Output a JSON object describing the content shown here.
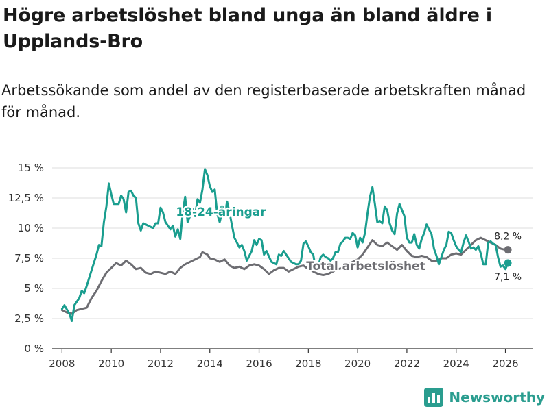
{
  "title": "Högre arbetslöshet bland unga än bland äldre i Upplands-Bro",
  "subtitle": "Arbetssökande som andel av den registerbaserade arbetskraften månad för månad.",
  "brand": {
    "name": "Newsworthy",
    "icon": "bar-chart-logo-icon"
  },
  "colors": {
    "youth": "#1a9e8f",
    "total": "#6d6d72",
    "grid": "#dddddd",
    "brand": "#2a9d8f"
  },
  "chart_data": {
    "type": "line",
    "xlabel": "",
    "ylabel": "",
    "xlim": [
      2007.6,
      2027.1
    ],
    "ylim": [
      0,
      15
    ],
    "grid": true,
    "x_ticks": [
      "2008",
      "2010",
      "2012",
      "2014",
      "2016",
      "2018",
      "2020",
      "2022",
      "2024",
      "2026"
    ],
    "y_ticks": [
      "0 %",
      "2,5 %",
      "5 %",
      "7,5 %",
      "10 %",
      "12,5 %",
      "15 %"
    ],
    "series": [
      {
        "name": "18-24-åringar",
        "label": "18-24-åringar",
        "end_label": "7,1 %",
        "points": [
          [
            2008.0,
            3.3
          ],
          [
            2008.1,
            3.6
          ],
          [
            2008.3,
            2.9
          ],
          [
            2008.4,
            2.3
          ],
          [
            2008.5,
            3.6
          ],
          [
            2008.7,
            4.2
          ],
          [
            2008.8,
            4.8
          ],
          [
            2008.9,
            4.6
          ],
          [
            2009.0,
            5.2
          ],
          [
            2009.2,
            6.5
          ],
          [
            2009.4,
            7.8
          ],
          [
            2009.5,
            8.6
          ],
          [
            2009.6,
            8.5
          ],
          [
            2009.7,
            10.5
          ],
          [
            2009.8,
            11.8
          ],
          [
            2009.9,
            13.7
          ],
          [
            2010.0,
            12.8
          ],
          [
            2010.1,
            12.0
          ],
          [
            2010.3,
            12.0
          ],
          [
            2010.4,
            12.7
          ],
          [
            2010.5,
            12.4
          ],
          [
            2010.6,
            11.3
          ],
          [
            2010.7,
            13.0
          ],
          [
            2010.8,
            13.1
          ],
          [
            2010.9,
            12.7
          ],
          [
            2011.0,
            12.5
          ],
          [
            2011.1,
            10.4
          ],
          [
            2011.2,
            9.8
          ],
          [
            2011.3,
            10.4
          ],
          [
            2011.5,
            10.2
          ],
          [
            2011.7,
            10.0
          ],
          [
            2011.8,
            10.4
          ],
          [
            2011.9,
            10.4
          ],
          [
            2012.0,
            11.7
          ],
          [
            2012.1,
            11.3
          ],
          [
            2012.2,
            10.5
          ],
          [
            2012.4,
            9.9
          ],
          [
            2012.5,
            10.2
          ],
          [
            2012.6,
            9.3
          ],
          [
            2012.7,
            9.9
          ],
          [
            2012.8,
            9.1
          ],
          [
            2012.9,
            11.3
          ],
          [
            2013.0,
            12.6
          ],
          [
            2013.1,
            10.5
          ],
          [
            2013.2,
            11.0
          ],
          [
            2013.3,
            11.6
          ],
          [
            2013.4,
            11.0
          ],
          [
            2013.5,
            12.4
          ],
          [
            2013.6,
            12.1
          ],
          [
            2013.7,
            13.2
          ],
          [
            2013.8,
            14.9
          ],
          [
            2013.9,
            14.4
          ],
          [
            2014.0,
            13.5
          ],
          [
            2014.1,
            13.0
          ],
          [
            2014.2,
            13.2
          ],
          [
            2014.3,
            11.2
          ],
          [
            2014.4,
            10.5
          ],
          [
            2014.5,
            11.3
          ],
          [
            2014.6,
            11.0
          ],
          [
            2014.7,
            12.2
          ],
          [
            2014.8,
            11.3
          ],
          [
            2014.9,
            10.2
          ],
          [
            2015.0,
            9.2
          ],
          [
            2015.2,
            8.4
          ],
          [
            2015.3,
            8.6
          ],
          [
            2015.4,
            8.1
          ],
          [
            2015.5,
            7.3
          ],
          [
            2015.7,
            8.1
          ],
          [
            2015.8,
            9.0
          ],
          [
            2015.9,
            8.6
          ],
          [
            2016.0,
            9.1
          ],
          [
            2016.1,
            9.0
          ],
          [
            2016.2,
            7.8
          ],
          [
            2016.3,
            8.1
          ],
          [
            2016.5,
            7.2
          ],
          [
            2016.7,
            7.0
          ],
          [
            2016.8,
            7.8
          ],
          [
            2016.9,
            7.7
          ],
          [
            2017.0,
            8.1
          ],
          [
            2017.1,
            7.8
          ],
          [
            2017.3,
            7.2
          ],
          [
            2017.5,
            7.0
          ],
          [
            2017.6,
            7.0
          ],
          [
            2017.7,
            7.3
          ],
          [
            2017.8,
            8.7
          ],
          [
            2017.9,
            8.9
          ],
          [
            2018.0,
            8.5
          ],
          [
            2018.1,
            8.0
          ],
          [
            2018.2,
            7.8
          ],
          [
            2018.3,
            6.6
          ],
          [
            2018.4,
            6.8
          ],
          [
            2018.5,
            7.6
          ],
          [
            2018.6,
            7.8
          ],
          [
            2018.7,
            7.6
          ],
          [
            2018.8,
            7.5
          ],
          [
            2018.9,
            7.3
          ],
          [
            2019.0,
            7.5
          ],
          [
            2019.1,
            8.0
          ],
          [
            2019.2,
            8.0
          ],
          [
            2019.3,
            8.7
          ],
          [
            2019.4,
            8.9
          ],
          [
            2019.5,
            9.2
          ],
          [
            2019.6,
            9.2
          ],
          [
            2019.7,
            9.1
          ],
          [
            2019.8,
            9.6
          ],
          [
            2019.9,
            9.4
          ],
          [
            2020.0,
            8.4
          ],
          [
            2020.1,
            9.2
          ],
          [
            2020.2,
            8.8
          ],
          [
            2020.3,
            9.6
          ],
          [
            2020.4,
            11.2
          ],
          [
            2020.5,
            12.6
          ],
          [
            2020.6,
            13.4
          ],
          [
            2020.7,
            12.0
          ],
          [
            2020.8,
            10.5
          ],
          [
            2020.9,
            10.6
          ],
          [
            2021.0,
            10.4
          ],
          [
            2021.1,
            11.8
          ],
          [
            2021.2,
            11.5
          ],
          [
            2021.3,
            10.4
          ],
          [
            2021.4,
            9.8
          ],
          [
            2021.5,
            9.5
          ],
          [
            2021.6,
            11.2
          ],
          [
            2021.7,
            12.0
          ],
          [
            2021.8,
            11.5
          ],
          [
            2021.9,
            11.0
          ],
          [
            2022.0,
            9.2
          ],
          [
            2022.1,
            8.8
          ],
          [
            2022.2,
            8.8
          ],
          [
            2022.3,
            9.5
          ],
          [
            2022.4,
            8.6
          ],
          [
            2022.5,
            8.3
          ],
          [
            2022.6,
            9.1
          ],
          [
            2022.7,
            9.6
          ],
          [
            2022.8,
            10.3
          ],
          [
            2022.9,
            9.9
          ],
          [
            2023.0,
            9.5
          ],
          [
            2023.1,
            8.3
          ],
          [
            2023.2,
            7.7
          ],
          [
            2023.3,
            7.0
          ],
          [
            2023.4,
            7.6
          ],
          [
            2023.5,
            8.2
          ],
          [
            2023.6,
            8.6
          ],
          [
            2023.7,
            9.7
          ],
          [
            2023.8,
            9.6
          ],
          [
            2023.9,
            9.0
          ],
          [
            2024.0,
            8.5
          ],
          [
            2024.1,
            8.2
          ],
          [
            2024.2,
            8.0
          ],
          [
            2024.3,
            8.8
          ],
          [
            2024.4,
            9.4
          ],
          [
            2024.5,
            8.9
          ],
          [
            2024.6,
            8.3
          ],
          [
            2024.7,
            8.4
          ],
          [
            2024.8,
            8.2
          ],
          [
            2024.9,
            8.5
          ],
          [
            2025.0,
            7.9
          ],
          [
            2025.1,
            7.0
          ],
          [
            2025.2,
            7.0
          ],
          [
            2025.3,
            8.8
          ],
          [
            2025.4,
            8.9
          ],
          [
            2025.5,
            8.7
          ],
          [
            2025.6,
            8.6
          ],
          [
            2025.7,
            7.6
          ],
          [
            2025.8,
            6.8
          ],
          [
            2025.9,
            6.9
          ],
          [
            2026.0,
            6.6
          ],
          [
            2026.1,
            7.1
          ]
        ]
      },
      {
        "name": "Total arbetslöshet",
        "label": "Total arbetslöshet",
        "end_label": "8,2 %",
        "points": [
          [
            2008.0,
            3.2
          ],
          [
            2008.2,
            3.0
          ],
          [
            2008.4,
            2.9
          ],
          [
            2008.6,
            3.2
          ],
          [
            2008.8,
            3.3
          ],
          [
            2009.0,
            3.4
          ],
          [
            2009.2,
            4.2
          ],
          [
            2009.4,
            4.8
          ],
          [
            2009.6,
            5.6
          ],
          [
            2009.8,
            6.3
          ],
          [
            2010.0,
            6.7
          ],
          [
            2010.2,
            7.1
          ],
          [
            2010.4,
            6.9
          ],
          [
            2010.6,
            7.3
          ],
          [
            2010.8,
            7.0
          ],
          [
            2011.0,
            6.6
          ],
          [
            2011.2,
            6.7
          ],
          [
            2011.4,
            6.3
          ],
          [
            2011.6,
            6.2
          ],
          [
            2011.8,
            6.4
          ],
          [
            2012.0,
            6.3
          ],
          [
            2012.2,
            6.2
          ],
          [
            2012.4,
            6.4
          ],
          [
            2012.6,
            6.2
          ],
          [
            2012.8,
            6.7
          ],
          [
            2013.0,
            7.0
          ],
          [
            2013.2,
            7.2
          ],
          [
            2013.4,
            7.4
          ],
          [
            2013.6,
            7.6
          ],
          [
            2013.7,
            8.0
          ],
          [
            2013.9,
            7.8
          ],
          [
            2014.0,
            7.5
          ],
          [
            2014.2,
            7.4
          ],
          [
            2014.4,
            7.2
          ],
          [
            2014.6,
            7.4
          ],
          [
            2014.8,
            6.9
          ],
          [
            2015.0,
            6.7
          ],
          [
            2015.2,
            6.8
          ],
          [
            2015.4,
            6.6
          ],
          [
            2015.6,
            6.9
          ],
          [
            2015.8,
            7.0
          ],
          [
            2016.0,
            6.9
          ],
          [
            2016.2,
            6.6
          ],
          [
            2016.4,
            6.2
          ],
          [
            2016.6,
            6.5
          ],
          [
            2016.8,
            6.7
          ],
          [
            2017.0,
            6.7
          ],
          [
            2017.2,
            6.4
          ],
          [
            2017.4,
            6.6
          ],
          [
            2017.6,
            6.8
          ],
          [
            2017.8,
            6.9
          ],
          [
            2018.0,
            6.6
          ],
          [
            2018.2,
            6.4
          ],
          [
            2018.4,
            6.2
          ],
          [
            2018.6,
            6.1
          ],
          [
            2018.8,
            6.2
          ],
          [
            2019.0,
            6.4
          ],
          [
            2019.2,
            6.6
          ],
          [
            2019.4,
            6.7
          ],
          [
            2019.6,
            7.0
          ],
          [
            2019.8,
            7.2
          ],
          [
            2020.0,
            7.4
          ],
          [
            2020.2,
            7.8
          ],
          [
            2020.4,
            8.4
          ],
          [
            2020.6,
            9.0
          ],
          [
            2020.8,
            8.6
          ],
          [
            2021.0,
            8.5
          ],
          [
            2021.2,
            8.8
          ],
          [
            2021.4,
            8.5
          ],
          [
            2021.6,
            8.2
          ],
          [
            2021.8,
            8.6
          ],
          [
            2022.0,
            8.1
          ],
          [
            2022.2,
            7.7
          ],
          [
            2022.4,
            7.6
          ],
          [
            2022.6,
            7.7
          ],
          [
            2022.8,
            7.6
          ],
          [
            2023.0,
            7.3
          ],
          [
            2023.2,
            7.3
          ],
          [
            2023.4,
            7.5
          ],
          [
            2023.6,
            7.5
          ],
          [
            2023.8,
            7.8
          ],
          [
            2024.0,
            7.9
          ],
          [
            2024.2,
            7.8
          ],
          [
            2024.4,
            8.2
          ],
          [
            2024.6,
            8.6
          ],
          [
            2024.8,
            9.0
          ],
          [
            2025.0,
            9.2
          ],
          [
            2025.2,
            9.0
          ],
          [
            2025.4,
            8.8
          ],
          [
            2025.6,
            8.6
          ],
          [
            2025.8,
            8.3
          ],
          [
            2026.0,
            8.2
          ],
          [
            2026.1,
            8.2
          ]
        ]
      }
    ]
  }
}
